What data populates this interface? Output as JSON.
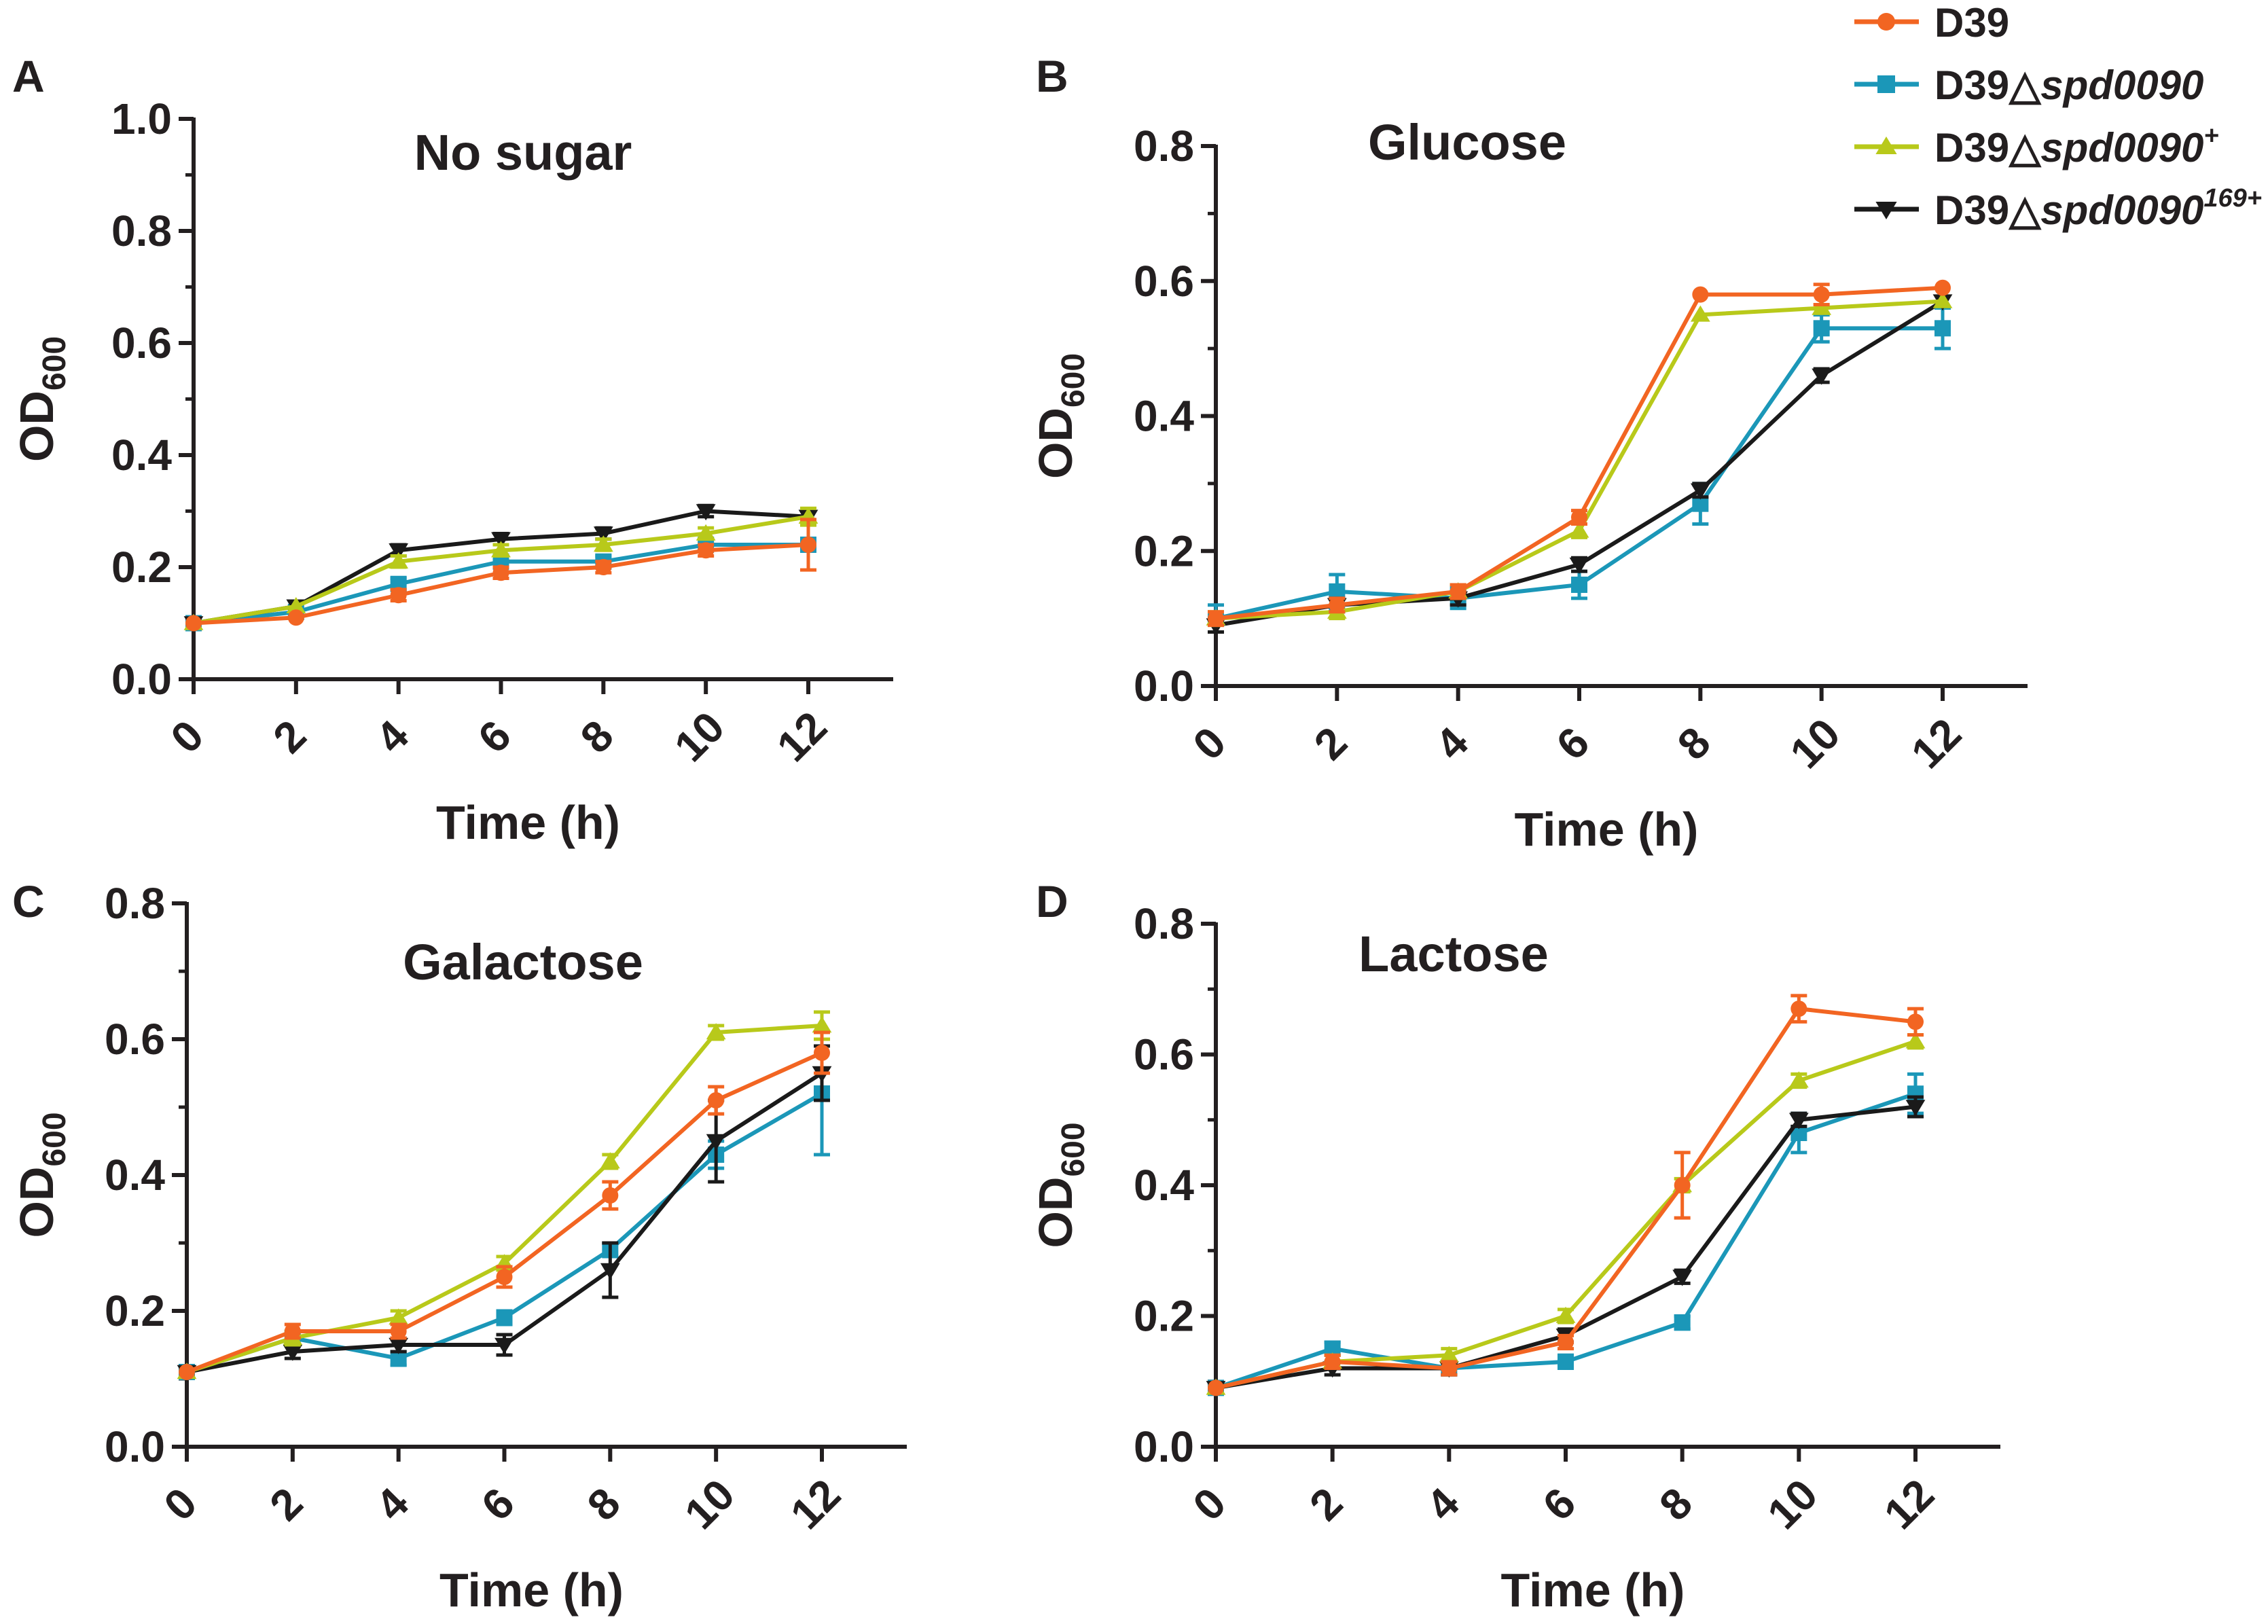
{
  "figure": {
    "legend": [
      {
        "label_main": "D39",
        "label_italic": "",
        "label_sup": "",
        "color": "#f26522",
        "marker": "circle"
      },
      {
        "label_main": "D39△",
        "label_italic": "spd0090",
        "label_sup": "",
        "color": "#1b97b8",
        "marker": "square"
      },
      {
        "label_main": "D39△",
        "label_italic": "spd0090",
        "label_sup": "+",
        "color": "#b8c91a",
        "marker": "triangle-up"
      },
      {
        "label_main": "D39△",
        "label_italic": "spd0090",
        "label_sup": "169+",
        "color": "#1a1a1a",
        "marker": "triangle-down"
      }
    ]
  },
  "chart_data": [
    {
      "panel_letter": "A",
      "type": "line",
      "title": "No sugar",
      "xlabel": "Time (h)",
      "ylabel_main": "OD",
      "ylabel_sub": "600",
      "x": [
        0,
        2,
        4,
        6,
        8,
        10,
        12
      ],
      "xticks": [
        "0",
        "2",
        "4",
        "6",
        "8",
        "10",
        "12"
      ],
      "ylim": [
        0,
        1.0
      ],
      "yticks": [
        "0.0",
        "0.2",
        "0.4",
        "0.6",
        "0.8",
        "1.0"
      ],
      "series": [
        {
          "name": "D39",
          "values": [
            0.1,
            0.11,
            0.15,
            0.19,
            0.2,
            0.23,
            0.24
          ],
          "errors": [
            0.005,
            0.005,
            0.01,
            0.01,
            0.01,
            0.01,
            0.045
          ]
        },
        {
          "name": "D39△spd0090",
          "values": [
            0.1,
            0.12,
            0.17,
            0.21,
            0.21,
            0.24,
            0.24
          ],
          "errors": [
            0.005,
            0.005,
            0.01,
            0.01,
            0.01,
            0.01,
            0.01
          ]
        },
        {
          "name": "D39△spd0090+",
          "values": [
            0.1,
            0.13,
            0.21,
            0.23,
            0.24,
            0.26,
            0.29
          ],
          "errors": [
            0.005,
            0.005,
            0.01,
            0.01,
            0.01,
            0.01,
            0.015
          ]
        },
        {
          "name": "D39△spd0090169+",
          "values": [
            0.1,
            0.13,
            0.23,
            0.25,
            0.26,
            0.3,
            0.29
          ],
          "errors": [
            0.005,
            0.005,
            0.01,
            0.01,
            0.01,
            0.01,
            0.01
          ]
        }
      ]
    },
    {
      "panel_letter": "B",
      "type": "line",
      "title": "Glucose",
      "xlabel": "Time (h)",
      "ylabel_main": "OD",
      "ylabel_sub": "600",
      "x": [
        0,
        2,
        4,
        6,
        8,
        10,
        12
      ],
      "xticks": [
        "0",
        "2",
        "4",
        "6",
        "8",
        "10",
        "12"
      ],
      "ylim": [
        0,
        0.8
      ],
      "yticks": [
        "0.0",
        "0.2",
        "0.4",
        "0.6",
        "0.8"
      ],
      "series": [
        {
          "name": "D39",
          "values": [
            0.1,
            0.12,
            0.14,
            0.25,
            0.58,
            0.58,
            0.59
          ],
          "errors": [
            0.01,
            0.01,
            0.01,
            0.01,
            0.005,
            0.015,
            0.005
          ]
        },
        {
          "name": "D39△spd0090",
          "values": [
            0.1,
            0.14,
            0.13,
            0.15,
            0.27,
            0.53,
            0.53
          ],
          "errors": [
            0.02,
            0.025,
            0.015,
            0.02,
            0.03,
            0.02,
            0.03
          ]
        },
        {
          "name": "D39△spd0090+",
          "values": [
            0.1,
            0.11,
            0.14,
            0.23,
            0.55,
            0.56,
            0.57
          ],
          "errors": [
            0.01,
            0.01,
            0.01,
            0.01,
            0.005,
            0.005,
            0.005
          ]
        },
        {
          "name": "D39△spd0090169+",
          "values": [
            0.09,
            0.12,
            0.13,
            0.18,
            0.29,
            0.46,
            0.57
          ],
          "errors": [
            0.01,
            0.01,
            0.01,
            0.01,
            0.01,
            0.01,
            0.005
          ]
        }
      ]
    },
    {
      "panel_letter": "C",
      "type": "line",
      "title": "Galactose",
      "xlabel": "Time (h)",
      "ylabel_main": "OD",
      "ylabel_sub": "600",
      "x": [
        0,
        2,
        4,
        6,
        8,
        10,
        12
      ],
      "xticks": [
        "0",
        "2",
        "4",
        "6",
        "8",
        "10",
        "12"
      ],
      "ylim": [
        0,
        0.8
      ],
      "yticks": [
        "0.0",
        "0.2",
        "0.4",
        "0.6",
        "0.8"
      ],
      "series": [
        {
          "name": "D39",
          "values": [
            0.11,
            0.17,
            0.17,
            0.25,
            0.37,
            0.51,
            0.58
          ],
          "errors": [
            0.005,
            0.01,
            0.01,
            0.015,
            0.02,
            0.02,
            0.03
          ]
        },
        {
          "name": "D39△spd0090",
          "values": [
            0.11,
            0.16,
            0.13,
            0.19,
            0.29,
            0.43,
            0.52
          ],
          "errors": [
            0.005,
            0.01,
            0.01,
            0.01,
            0.01,
            0.02,
            0.09
          ]
        },
        {
          "name": "D39△spd0090+",
          "values": [
            0.11,
            0.16,
            0.19,
            0.27,
            0.42,
            0.61,
            0.62
          ],
          "errors": [
            0.005,
            0.01,
            0.01,
            0.01,
            0.01,
            0.01,
            0.02
          ]
        },
        {
          "name": "D39△spd0090169+",
          "values": [
            0.11,
            0.14,
            0.15,
            0.15,
            0.26,
            0.45,
            0.55
          ],
          "errors": [
            0.005,
            0.01,
            0.01,
            0.015,
            0.04,
            0.06,
            0.04
          ]
        }
      ]
    },
    {
      "panel_letter": "D",
      "type": "line",
      "title": "Lactose",
      "xlabel": "Time  (h)",
      "ylabel_main": "OD",
      "ylabel_sub": "600",
      "x": [
        0,
        2,
        4,
        6,
        8,
        10,
        12
      ],
      "xticks": [
        "0",
        "2",
        "4",
        "6",
        "8",
        "10",
        "12"
      ],
      "ylim": [
        0,
        0.8
      ],
      "yticks": [
        "0.0",
        "0.2",
        "0.4",
        "0.6",
        "0.8"
      ],
      "series": [
        {
          "name": "D39",
          "values": [
            0.09,
            0.13,
            0.12,
            0.16,
            0.4,
            0.67,
            0.65
          ],
          "errors": [
            0.005,
            0.01,
            0.01,
            0.01,
            0.05,
            0.02,
            0.02
          ]
        },
        {
          "name": "D39△spd0090",
          "values": [
            0.09,
            0.15,
            0.12,
            0.13,
            0.19,
            0.48,
            0.54
          ],
          "errors": [
            0.005,
            0.01,
            0.01,
            0.01,
            0.01,
            0.03,
            0.03
          ]
        },
        {
          "name": "D39△spd0090+",
          "values": [
            0.09,
            0.13,
            0.14,
            0.2,
            0.4,
            0.56,
            0.62
          ],
          "errors": [
            0.005,
            0.01,
            0.01,
            0.01,
            0.01,
            0.01,
            0.01
          ]
        },
        {
          "name": "D39△spd0090169+",
          "values": [
            0.09,
            0.12,
            0.12,
            0.17,
            0.26,
            0.5,
            0.52
          ],
          "errors": [
            0.005,
            0.01,
            0.01,
            0.01,
            0.01,
            0.01,
            0.015
          ]
        }
      ]
    }
  ]
}
